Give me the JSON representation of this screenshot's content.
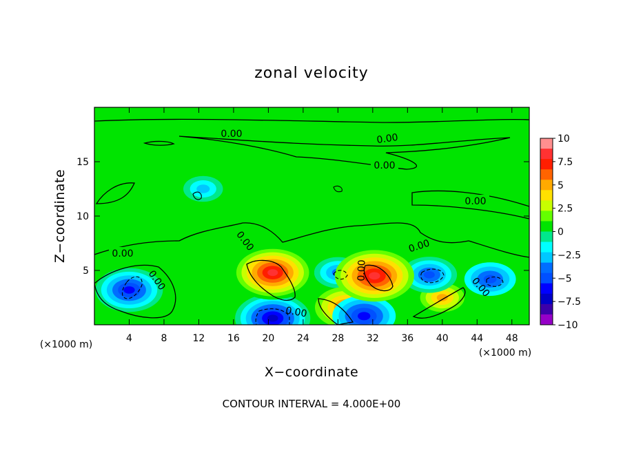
{
  "chart_data": {
    "type": "heatmap",
    "title": "zonal velocity",
    "xlabel": "X−coordinate",
    "ylabel": "Z−coordinate",
    "x_unit": "(×1000 m)",
    "z_unit": "(×1000 m)",
    "footer": "CONTOUR INTERVAL = 4.000E+00",
    "contour_label": "0.00",
    "xlim": [
      0,
      50
    ],
    "ylim": [
      0,
      20
    ],
    "x_ticks": [
      "4",
      "8",
      "12",
      "16",
      "20",
      "24",
      "28",
      "32",
      "36",
      "40",
      "44",
      "48"
    ],
    "y_ticks": [
      "5",
      "10",
      "15"
    ],
    "colorbar": {
      "range": [
        -10,
        10
      ],
      "labels": [
        "10",
        "7.5",
        "5",
        "2.5",
        "0",
        "−2.5",
        "−5",
        "−7.5",
        "−10"
      ],
      "colors": [
        "#ff8f8f",
        "#ff3232",
        "#ff1e00",
        "#ff6400",
        "#ffaa00",
        "#ffe100",
        "#c8ff00",
        "#64ff00",
        "#00e400",
        "#00e88c",
        "#00ffff",
        "#00c8ff",
        "#006eff",
        "#0050ff",
        "#0000ff",
        "#0000c8",
        "#3c00aa",
        "#9600c8"
      ]
    },
    "features": [
      {
        "x": 20.5,
        "z": 4.8,
        "u": 8.5
      },
      {
        "x": 32.2,
        "z": 4.5,
        "u": 8.0
      },
      {
        "x": 29.0,
        "z": 1.6,
        "u": 6.0
      },
      {
        "x": 40.0,
        "z": 2.5,
        "u": 5.0
      },
      {
        "x": 4.0,
        "z": 3.2,
        "u": -6.5
      },
      {
        "x": 20.5,
        "z": 0.6,
        "u": -7.5
      },
      {
        "x": 31.0,
        "z": 0.8,
        "u": -6.0
      },
      {
        "x": 38.5,
        "z": 4.6,
        "u": -5.0
      },
      {
        "x": 45.5,
        "z": 4.2,
        "u": -4.5
      },
      {
        "x": 28.0,
        "z": 4.8,
        "u": -4.0
      },
      {
        "x": 12.5,
        "z": 12.5,
        "u": -3.0
      }
    ]
  }
}
